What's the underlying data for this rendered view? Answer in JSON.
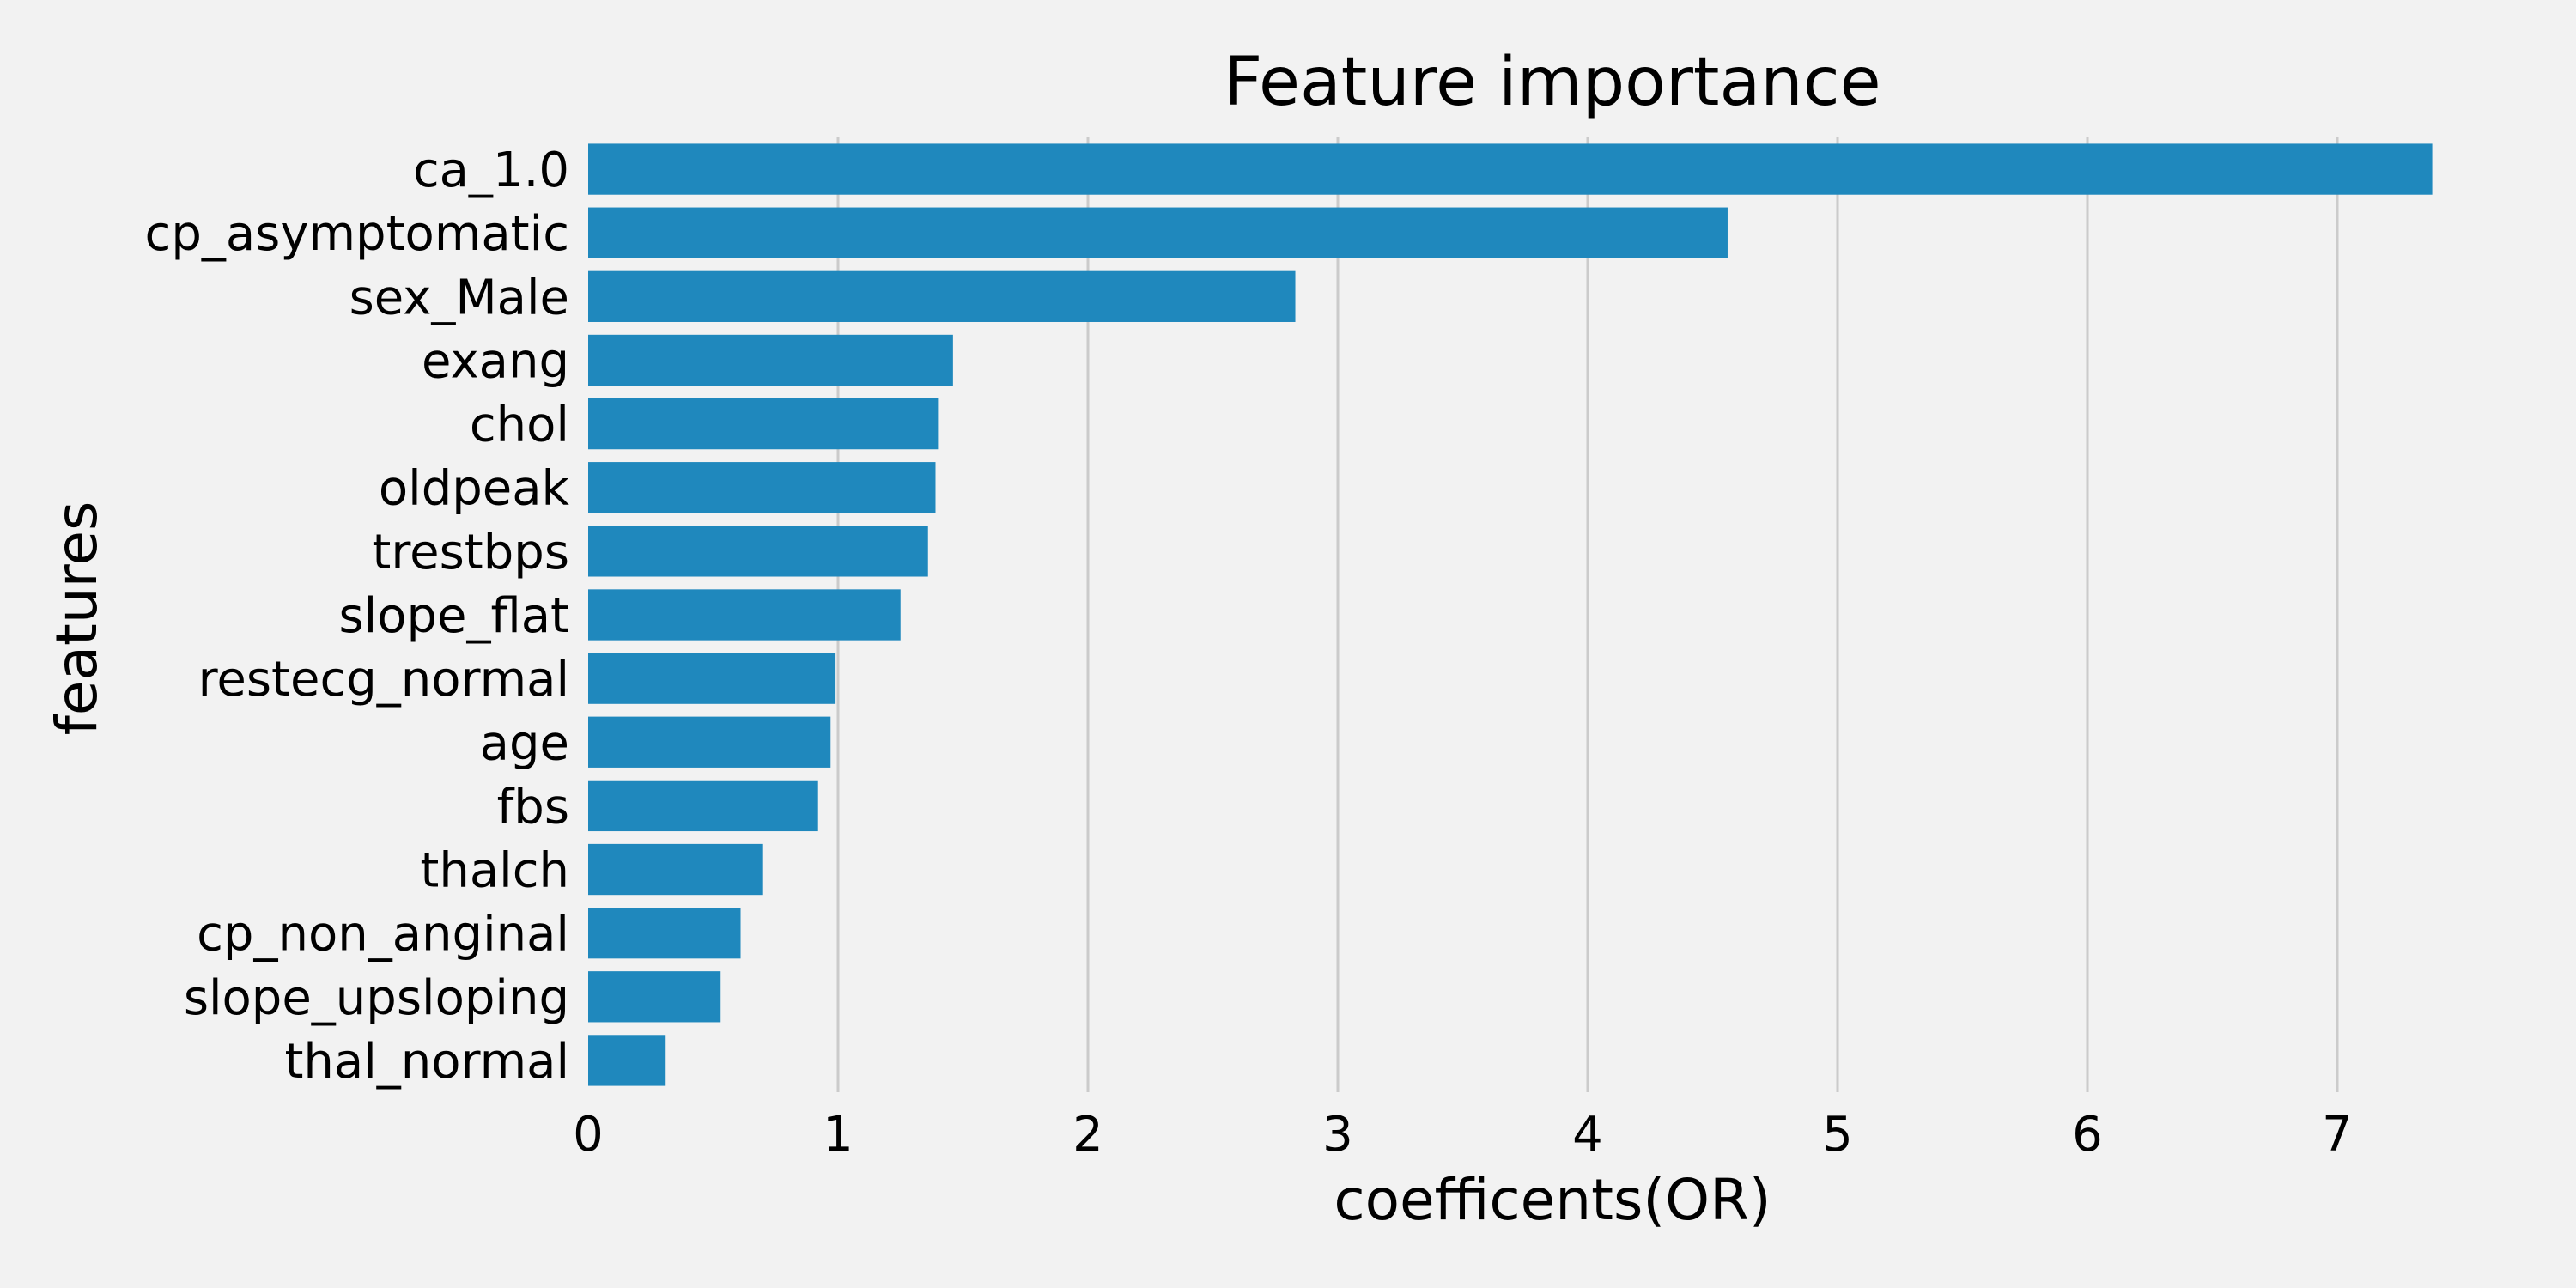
{
  "chart_data": {
    "type": "bar",
    "orientation": "horizontal",
    "title": "Feature importance",
    "xlabel": "coefficents(OR)",
    "ylabel": "features",
    "xlim": [
      0,
      7.6
    ],
    "xticks": [
      0,
      1,
      2,
      3,
      4,
      5,
      6,
      7
    ],
    "grid": "vertical",
    "categories": [
      "ca_1.0",
      "cp_asymptomatic",
      "sex_Male",
      "exang",
      "chol",
      "oldpeak",
      "trestbps",
      "slope_flat",
      "restecg_normal",
      "age",
      "fbs",
      "thalch",
      "cp_non_anginal",
      "slope_upsloping",
      "thal_normal"
    ],
    "values": [
      7.38,
      4.56,
      2.83,
      1.46,
      1.4,
      1.39,
      1.36,
      1.25,
      0.99,
      0.97,
      0.92,
      0.7,
      0.61,
      0.53,
      0.31
    ],
    "colors": {
      "bar": "#1f88bd",
      "background": "#f2f2f2",
      "grid": "#cbcbcb"
    }
  }
}
